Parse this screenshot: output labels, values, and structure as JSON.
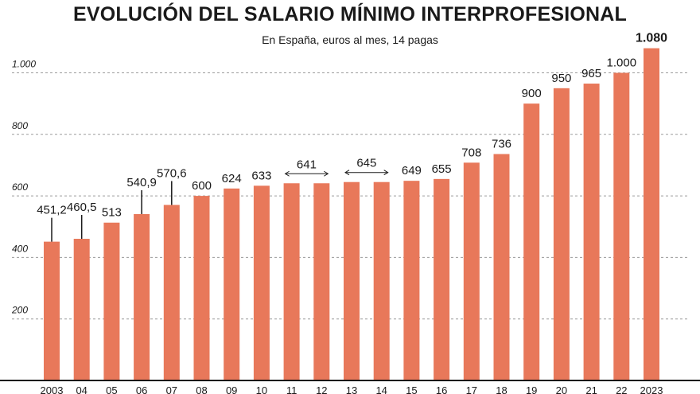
{
  "title": "EVOLUCIÓN DEL SALARIO MÍNIMO INTERPROFESIONAL",
  "subtitle": "En España, euros al mes, 14 pagas",
  "chart_data": {
    "type": "bar",
    "title": "EVOLUCIÓN DEL SALARIO MÍNIMO INTERPROFESIONAL",
    "subtitle": "En España, euros al mes, 14 pagas",
    "xlabel": "",
    "ylabel": "",
    "ylim": [
      0,
      1100
    ],
    "grid": true,
    "bar_color": "#e8785a",
    "categories": [
      "2003",
      "04",
      "05",
      "06",
      "07",
      "08",
      "09",
      "10",
      "11",
      "12",
      "13",
      "14",
      "15",
      "16",
      "17",
      "18",
      "19",
      "20",
      "21",
      "22",
      "2023"
    ],
    "values": [
      451.2,
      460.5,
      513,
      540.9,
      570.6,
      600,
      624,
      633,
      641,
      641,
      645,
      645,
      649,
      655,
      708,
      736,
      900,
      950,
      965,
      1000,
      1080
    ],
    "yticks": [
      {
        "value": 200,
        "label": "200"
      },
      {
        "value": 400,
        "label": "400"
      },
      {
        "value": 600,
        "label": "600"
      },
      {
        "value": 800,
        "label": "800"
      },
      {
        "value": 1000,
        "label": "1.000"
      }
    ],
    "data_labels": [
      {
        "index": 0,
        "text": "451,2",
        "leader": true
      },
      {
        "index": 1,
        "text": "460,5",
        "leader": true
      },
      {
        "index": 2,
        "text": "513"
      },
      {
        "index": 3,
        "text": "540,9",
        "leader": true
      },
      {
        "index": 4,
        "text": "570,6",
        "leader": true
      },
      {
        "index": 5,
        "text": "600"
      },
      {
        "index": 6,
        "text": "624"
      },
      {
        "index": 7,
        "text": "633"
      },
      {
        "index": 8,
        "span_to": 9,
        "text": "641"
      },
      {
        "index": 10,
        "span_to": 11,
        "text": "645"
      },
      {
        "index": 12,
        "text": "649"
      },
      {
        "index": 13,
        "text": "655"
      },
      {
        "index": 14,
        "text": "708"
      },
      {
        "index": 15,
        "text": "736"
      },
      {
        "index": 16,
        "text": "900"
      },
      {
        "index": 17,
        "text": "950"
      },
      {
        "index": 18,
        "text": "965"
      },
      {
        "index": 19,
        "text": "1.000"
      },
      {
        "index": 20,
        "text": "1.080",
        "bold": true
      }
    ]
  }
}
